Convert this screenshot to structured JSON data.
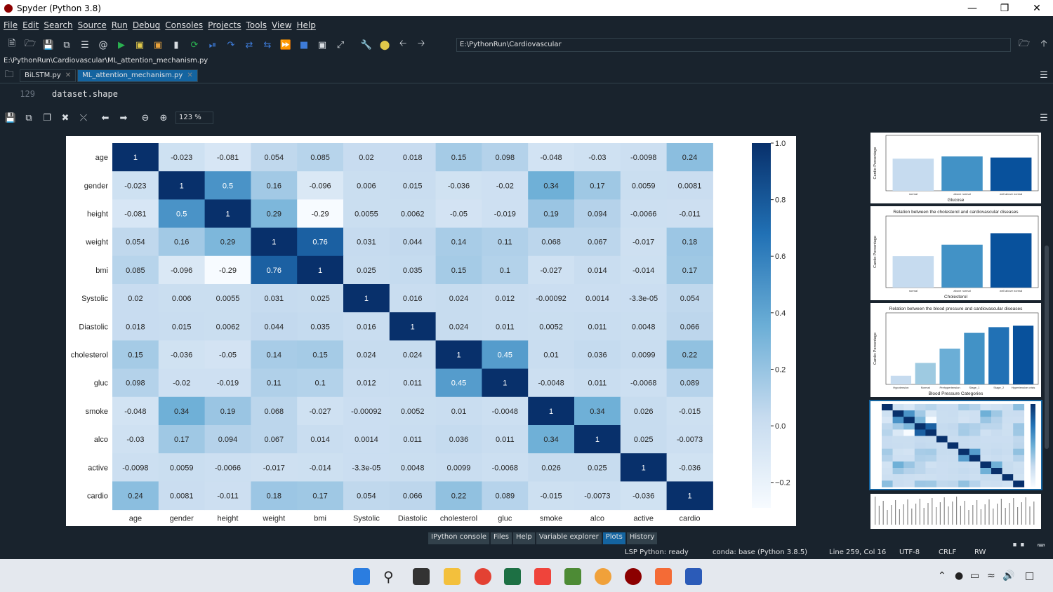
{
  "window": {
    "title": "Spyder (Python 3.8)"
  },
  "menu": [
    "File",
    "Edit",
    "Search",
    "Source",
    "Run",
    "Debug",
    "Consoles",
    "Projects",
    "Tools",
    "View",
    "Help"
  ],
  "toolbar": {
    "working_dir": "E:\\PythonRun\\Cardiovascular"
  },
  "editor": {
    "file_path": "E:\\PythonRun\\Cardiovascular\\ML_attention_mechanism.py",
    "tabs": [
      {
        "label": "BiLSTM.py",
        "active": false
      },
      {
        "label": "ML_attention_mechanism.py",
        "active": true
      }
    ],
    "line_number": "129",
    "code_line": "dataset.shape"
  },
  "plots": {
    "zoom": "123 %"
  },
  "chart_data": {
    "type": "heatmap",
    "labels": [
      "age",
      "gender",
      "height",
      "weight",
      "bmi",
      "Systolic",
      "Diastolic",
      "cholesterol",
      "gluc",
      "smoke",
      "alco",
      "active",
      "cardio"
    ],
    "cell_text": [
      [
        "1",
        "-0.023",
        "-0.081",
        "0.054",
        "0.085",
        "0.02",
        "0.018",
        "0.15",
        "0.098",
        "-0.048",
        "-0.03",
        "-0.0098",
        "0.24"
      ],
      [
        "-0.023",
        "1",
        "0.5",
        "0.16",
        "-0.096",
        "0.006",
        "0.015",
        "-0.036",
        "-0.02",
        "0.34",
        "0.17",
        "0.0059",
        "0.0081"
      ],
      [
        "-0.081",
        "0.5",
        "1",
        "0.29",
        "-0.29",
        "0.0055",
        "0.0062",
        "-0.05",
        "-0.019",
        "0.19",
        "0.094",
        "-0.0066",
        "-0.011"
      ],
      [
        "0.054",
        "0.16",
        "0.29",
        "1",
        "0.76",
        "0.031",
        "0.044",
        "0.14",
        "0.11",
        "0.068",
        "0.067",
        "-0.017",
        "0.18"
      ],
      [
        "0.085",
        "-0.096",
        "-0.29",
        "0.76",
        "1",
        "0.025",
        "0.035",
        "0.15",
        "0.1",
        "-0.027",
        "0.014",
        "-0.014",
        "0.17"
      ],
      [
        "0.02",
        "0.006",
        "0.0055",
        "0.031",
        "0.025",
        "1",
        "0.016",
        "0.024",
        "0.012",
        "-0.00092",
        "0.0014",
        "-3.3e-05",
        "0.054"
      ],
      [
        "0.018",
        "0.015",
        "0.0062",
        "0.044",
        "0.035",
        "0.016",
        "1",
        "0.024",
        "0.011",
        "0.0052",
        "0.011",
        "0.0048",
        "0.066"
      ],
      [
        "0.15",
        "-0.036",
        "-0.05",
        "0.14",
        "0.15",
        "0.024",
        "0.024",
        "1",
        "0.45",
        "0.01",
        "0.036",
        "0.0099",
        "0.22"
      ],
      [
        "0.098",
        "-0.02",
        "-0.019",
        "0.11",
        "0.1",
        "0.012",
        "0.011",
        "0.45",
        "1",
        "-0.0048",
        "0.011",
        "-0.0068",
        "0.089"
      ],
      [
        "-0.048",
        "0.34",
        "0.19",
        "0.068",
        "-0.027",
        "-0.00092",
        "0.0052",
        "0.01",
        "-0.0048",
        "1",
        "0.34",
        "0.026",
        "-0.015"
      ],
      [
        "-0.03",
        "0.17",
        "0.094",
        "0.067",
        "0.014",
        "0.0014",
        "0.011",
        "0.036",
        "0.011",
        "0.34",
        "1",
        "0.025",
        "-0.0073"
      ],
      [
        "-0.0098",
        "0.0059",
        "-0.0066",
        "-0.017",
        "-0.014",
        "-3.3e-05",
        "0.0048",
        "0.0099",
        "-0.0068",
        "0.026",
        "0.025",
        "1",
        "-0.036"
      ],
      [
        "0.24",
        "0.0081",
        "-0.011",
        "0.18",
        "0.17",
        "0.054",
        "0.066",
        "0.22",
        "0.089",
        "-0.015",
        "-0.0073",
        "-0.036",
        "1"
      ]
    ],
    "colorbar_ticks": [
      "1.0",
      "0.8",
      "0.6",
      "0.4",
      "0.2",
      "0.0",
      "-0.2"
    ],
    "vmin": -0.29,
    "vmax": 1.0,
    "colormap": "Blues"
  },
  "thumbnails": [
    {
      "title": "",
      "xlabel": "Glucose",
      "ylabel": "Cardio Percentage",
      "values": [
        0.58,
        0.62,
        0.6
      ],
      "cats": [
        "normal",
        "above normal",
        "well above normal"
      ]
    },
    {
      "title": "Relation between the cholesterol and cardiovascular diseases",
      "xlabel": "Cholesterol",
      "ylabel": "Cardio Percentage",
      "values": [
        0.44,
        0.6,
        0.76
      ],
      "cats": [
        "normal",
        "above normal",
        "well above normal"
      ]
    },
    {
      "title": "Relation between the blood pressure and cardiovascular diseases",
      "xlabel": "Blood Pressure Categories",
      "ylabel": "Cardio Percentage",
      "values": [
        0.12,
        0.3,
        0.5,
        0.72,
        0.8,
        0.82
      ],
      "cats": [
        "Hypotension",
        "Normal",
        "Prehypertension",
        "Stage_1",
        "Stage_2",
        "Hypertensive crisis"
      ]
    }
  ],
  "pane_tabs": [
    "IPython console",
    "Files",
    "Help",
    "Variable explorer",
    "Plots",
    "History"
  ],
  "active_pane": "Plots",
  "status": {
    "lsp": "LSP Python: ready",
    "conda": "conda: base (Python 3.8.5)",
    "position": "Line 259, Col 16",
    "encoding": "UTF-8",
    "eol": "CRLF",
    "mode": "RW"
  }
}
